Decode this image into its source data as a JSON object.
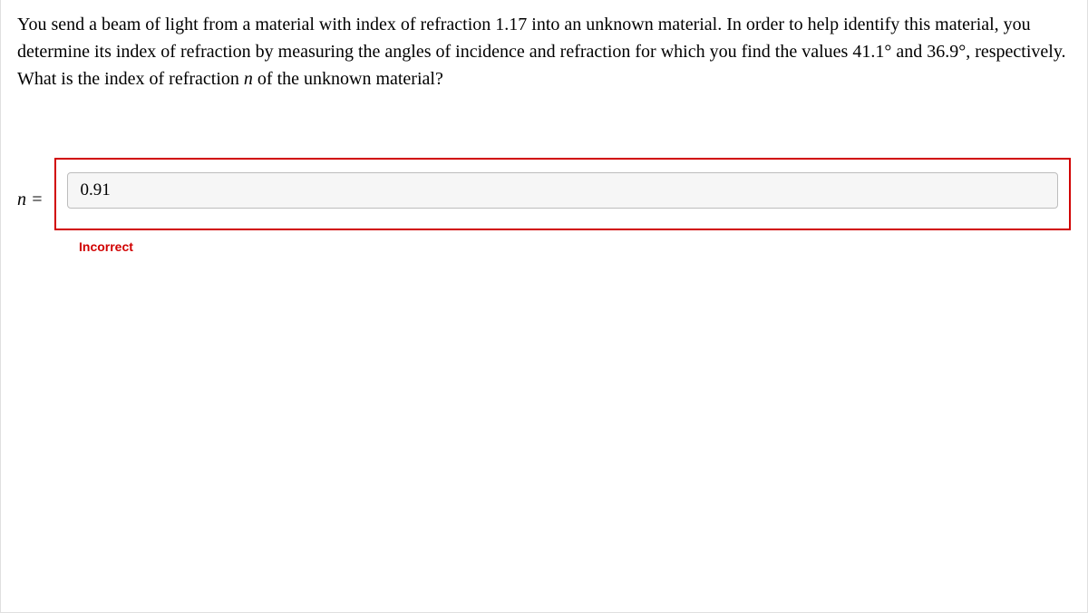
{
  "question": {
    "text_parts": {
      "p1": "You send a beam of light from a material with index of refraction 1.17 into an unknown material. In order to help identify this material, you determine its index of refraction by measuring the angles of incidence and refraction for which you find the values 41.1° and 36.9°, respectively. What is the index of refraction ",
      "var": "n",
      "p2": " of the unknown material?"
    }
  },
  "answer": {
    "variable_label": "n =",
    "input_value": "0.91",
    "feedback_text": "Incorrect"
  },
  "styling": {
    "question_fontsize": 20,
    "input_fontsize": 19,
    "feedback_fontsize": 14,
    "border_color_error": "#d10000",
    "text_color_error": "#d10000",
    "input_background": "#f6f6f6",
    "input_border": "#bdbdbd",
    "container_border": "#e0e0e0",
    "body_background": "#ffffff",
    "font_family_serif": "Georgia, 'Times New Roman', serif",
    "font_family_sans": "Arial, Helvetica, sans-serif"
  }
}
